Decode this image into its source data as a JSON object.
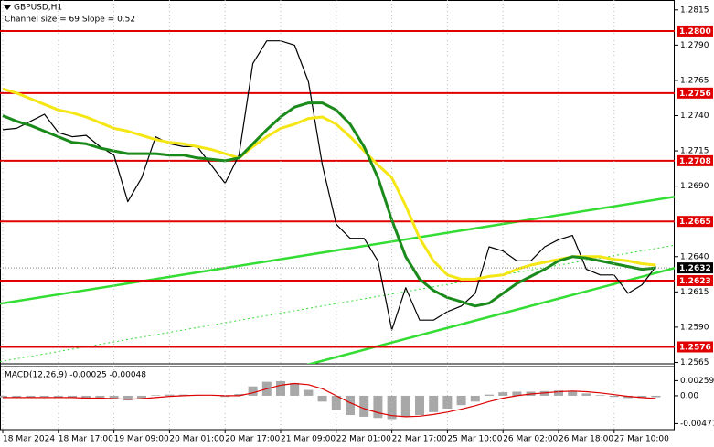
{
  "chart_data": [
    {
      "type": "line",
      "title": "GBPUSD,H1",
      "subtitle": "Channel size = 69 Slope = 0.52",
      "categories": [
        "18 Mar 2024",
        null,
        null,
        null,
        "18 Mar 17:00",
        null,
        null,
        null,
        "19 Mar 09:00",
        null,
        null,
        null,
        "20 Mar 01:00",
        null,
        null,
        null,
        "20 Mar 17:00",
        null,
        null,
        null,
        "21 Mar 09:00",
        null,
        null,
        null,
        "22 Mar 01:00",
        null,
        null,
        null,
        "22 Mar 17:00",
        null,
        null,
        null,
        "25 Mar 10:00",
        null,
        null,
        null,
        "26 Mar 02:00",
        null,
        null,
        null,
        "26 Mar 18:00",
        null,
        null,
        null,
        "27 Mar 10:00",
        null,
        null,
        null
      ],
      "series": [
        {
          "color": "#000000",
          "values": [
            1.273,
            1.2731,
            1.2736,
            1.2741,
            1.2728,
            1.2725,
            1.2726,
            1.2718,
            1.2712,
            1.2679,
            1.2696,
            1.2725,
            1.272,
            1.2718,
            1.2718,
            1.2705,
            1.2692,
            1.2712,
            1.2777,
            1.2793,
            1.2793,
            1.279,
            1.2764,
            1.2705,
            1.2663,
            1.2653,
            1.2653,
            1.2637,
            1.2588,
            1.2618,
            1.2595,
            1.2595,
            1.2601,
            1.2605,
            1.2614,
            1.2647,
            1.2644,
            1.2637,
            1.2637,
            1.2647,
            1.2652,
            1.2655,
            1.2631,
            1.2627,
            1.2627,
            1.2614,
            1.262,
            1.2633
          ]
        },
        {
          "color": "#f5e615",
          "values": [
            1.2759,
            1.2756,
            1.2752,
            1.2748,
            1.2744,
            1.2742,
            1.2739,
            1.2735,
            1.2731,
            1.2729,
            1.2726,
            1.2723,
            1.2721,
            1.272,
            1.2718,
            1.2716,
            1.2713,
            1.271,
            1.2718,
            1.2725,
            1.2731,
            1.2734,
            1.2738,
            1.2739,
            1.2734,
            1.2725,
            1.2715,
            1.2705,
            1.2696,
            1.2676,
            1.2653,
            1.2637,
            1.2627,
            1.2624,
            1.2624,
            1.2626,
            1.2627,
            1.2631,
            1.2634,
            1.2636,
            1.2638,
            1.264,
            1.264,
            1.264,
            1.2638,
            1.2637,
            1.2635,
            1.2634
          ]
        },
        {
          "color": "#1a8a1a",
          "values": [
            1.274,
            1.2736,
            1.2733,
            1.2729,
            1.2725,
            1.2721,
            1.272,
            1.2717,
            1.2715,
            1.2713,
            1.2713,
            1.2713,
            1.2712,
            1.2712,
            1.271,
            1.2709,
            1.2708,
            1.271,
            1.272,
            1.273,
            1.2739,
            1.2746,
            1.2749,
            1.2749,
            1.2744,
            1.2734,
            1.2718,
            1.2696,
            1.2666,
            1.264,
            1.2624,
            1.2616,
            1.2611,
            1.2608,
            1.2605,
            1.2607,
            1.2614,
            1.2621,
            1.2626,
            1.2631,
            1.2637,
            1.264,
            1.2639,
            1.2637,
            1.2635,
            1.2633,
            1.2631,
            1.2632
          ]
        }
      ],
      "channel": [
        {
          "color": "#33dd33",
          "values": [
            1.26066,
            1.26825
          ]
        },
        {
          "color": "#33dd33",
          "values": [
            1.2506,
            1.26319
          ]
        },
        {
          "color": "#33dd33",
          "dotted": true,
          "values": [
            1.25656,
            1.26481
          ]
        }
      ],
      "levels": [
        {
          "value": 1.28,
          "label": "1.2800"
        },
        1.2756,
        1.2708,
        1.2665,
        1.2623,
        1.2576
      ],
      "level_color": "#e00000",
      "current": 1.2632,
      "ylim": [
        1.2564,
        1.2822
      ],
      "yticks": [
        1.2815,
        {
          "value": 1.279,
          "label": "1.2790"
        },
        1.2765,
        {
          "value": 1.274,
          "label": "1.2740"
        },
        1.2715,
        {
          "value": 1.269,
          "label": "1.2690"
        },
        {
          "value": 1.264,
          "label": "1.2640"
        },
        1.2615,
        {
          "value": 1.259,
          "label": "1.2590"
        },
        1.2565
      ]
    },
    {
      "type": "bar",
      "title": "MACD(12,26,9) -0.00025 -0.00048",
      "series": [
        {
          "type": "bar",
          "color": "#a8a8a8",
          "values": [
            -0.0003,
            -0.0004,
            -0.0003,
            -0.0002,
            -0.0003,
            -0.0004,
            -0.0004,
            -0.0005,
            -0.0006,
            -0.0008,
            -0.0004,
            0.0001,
            0.0002,
            0.0002,
            0.0001,
            0,
            -0.0002,
            0.0003,
            0.0016,
            0.0024,
            0.0025,
            0.0022,
            0.001,
            -0.001,
            -0.0025,
            -0.0033,
            -0.0036,
            -0.0038,
            -0.004,
            -0.0036,
            -0.0033,
            -0.0028,
            -0.0022,
            -0.0016,
            -0.001,
            0.0002,
            0.0006,
            0.0007,
            0.0007,
            0.0008,
            0.0009,
            0.0008,
            0.0004,
            0.0001,
            -0.0002,
            -0.0004,
            -0.0004,
            -0.00025
          ]
        },
        {
          "type": "line",
          "color": "#dd0000",
          "values": [
            -0.0003,
            -0.0003,
            -0.0003,
            -0.0003,
            -0.0003,
            -0.0003,
            -0.0004,
            -0.0004,
            -0.0005,
            -0.0006,
            -0.0005,
            -0.0003,
            -0.0001,
            0,
            0.0001,
            0.0001,
            0,
            0,
            0.0005,
            0.0012,
            0.0018,
            0.0021,
            0.0019,
            0.0012,
            0,
            -0.0012,
            -0.0022,
            -0.0029,
            -0.0034,
            -0.0036,
            -0.0035,
            -0.0032,
            -0.0028,
            -0.0023,
            -0.0017,
            -0.001,
            -0.0004,
            0,
            0.0003,
            0.0005,
            0.0007,
            0.0008,
            0.0007,
            0.0005,
            0.0002,
            -0.0001,
            -0.0003,
            -0.00048
          ]
        }
      ],
      "ylim": [
        -0.0058,
        0.005
      ],
      "yticks": [
        0.00259,
        {
          "value": 0,
          "label": "0.00"
        },
        -0.00477
      ]
    }
  ]
}
